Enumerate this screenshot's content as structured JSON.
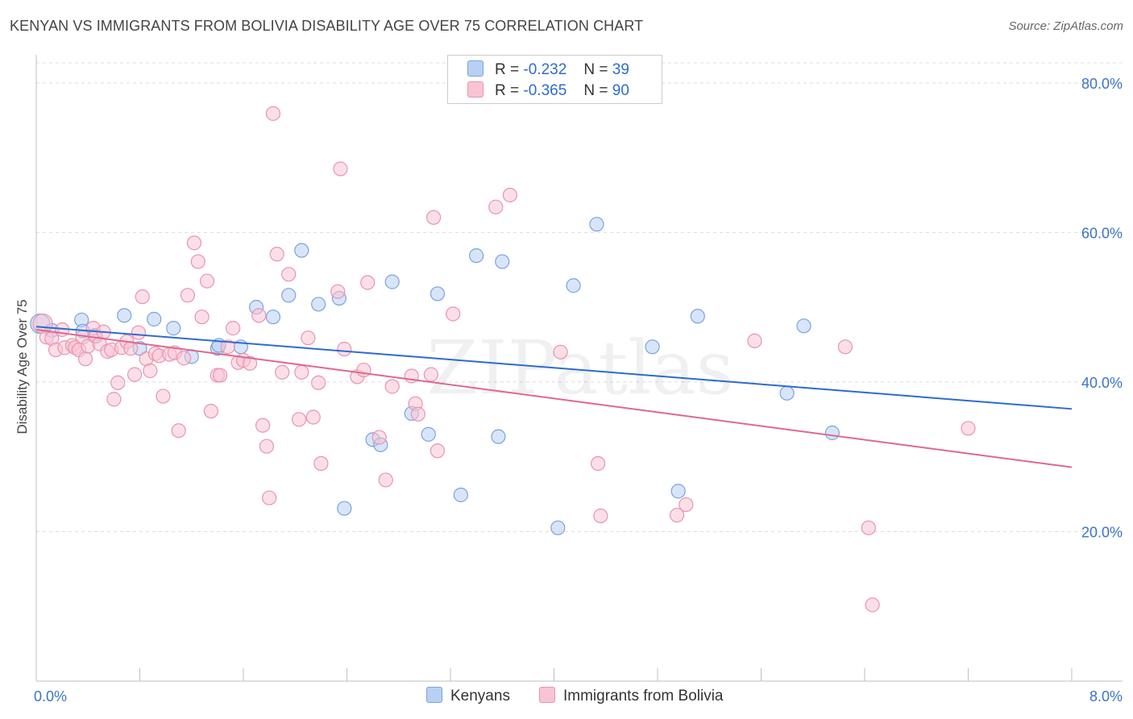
{
  "title": "KENYAN VS IMMIGRANTS FROM BOLIVIA DISABILITY AGE OVER 75 CORRELATION CHART",
  "source": "Source: ZipAtlas.com",
  "watermark": "ZIPatlas",
  "legend": {
    "kenyans": {
      "r_label": "R =",
      "r_value": "-0.232",
      "n_label": "N =",
      "n_value": "39"
    },
    "bolivia": {
      "r_label": "R =",
      "r_value": "-0.365",
      "n_label": "N =",
      "n_value": "90"
    }
  },
  "bottom_legend": {
    "kenyans": "Kenyans",
    "bolivia": "Immigrants from Bolivia"
  },
  "colors": {
    "kenyans_fill": "#b8d0f2",
    "kenyans_stroke": "#7aa3de",
    "kenyans_line": "#2d6bd0",
    "bolivia_fill": "#f8c4d4",
    "bolivia_stroke": "#ea93b0",
    "bolivia_line": "#e0678f",
    "axis_label": "#3a74c8"
  },
  "chart_data": {
    "type": "scatter",
    "title": "KENYAN VS IMMIGRANTS FROM BOLIVIA DISABILITY AGE OVER 75 CORRELATION CHART",
    "xlabel": "",
    "ylabel": "Disability Age Over 75",
    "xlim": [
      0,
      8
    ],
    "ylim": [
      0,
      83
    ],
    "x_tick_labels": [
      "0.0%",
      "8.0%"
    ],
    "y_ticks": [
      20,
      40,
      60,
      80
    ],
    "y_tick_labels": [
      "20.0%",
      "40.0%",
      "60.0%",
      "80.0%"
    ],
    "grid": true,
    "series": [
      {
        "name": "Kenyans",
        "r": -0.232,
        "n": 39,
        "trend": {
          "x": [
            0,
            8
          ],
          "y": [
            47.4,
            36.4
          ]
        },
        "points": [
          {
            "x": 0.03,
            "y": 47.8
          },
          {
            "x": 0.35,
            "y": 48.3
          },
          {
            "x": 0.68,
            "y": 48.9
          },
          {
            "x": 0.91,
            "y": 48.4
          },
          {
            "x": 0.36,
            "y": 46.8
          },
          {
            "x": 0.45,
            "y": 46.2
          },
          {
            "x": 0.8,
            "y": 44.5
          },
          {
            "x": 1.06,
            "y": 47.2
          },
          {
            "x": 1.2,
            "y": 43.4
          },
          {
            "x": 1.4,
            "y": 44.5
          },
          {
            "x": 1.41,
            "y": 44.9
          },
          {
            "x": 1.58,
            "y": 44.7
          },
          {
            "x": 1.7,
            "y": 50.0
          },
          {
            "x": 1.83,
            "y": 48.7
          },
          {
            "x": 1.95,
            "y": 51.6
          },
          {
            "x": 2.05,
            "y": 57.6
          },
          {
            "x": 2.18,
            "y": 50.4
          },
          {
            "x": 2.34,
            "y": 51.2
          },
          {
            "x": 2.6,
            "y": 32.3
          },
          {
            "x": 2.66,
            "y": 31.6
          },
          {
            "x": 2.75,
            "y": 53.4
          },
          {
            "x": 2.9,
            "y": 35.8
          },
          {
            "x": 3.03,
            "y": 33.0
          },
          {
            "x": 3.1,
            "y": 51.8
          },
          {
            "x": 3.28,
            "y": 24.9
          },
          {
            "x": 3.4,
            "y": 56.9
          },
          {
            "x": 3.57,
            "y": 32.7
          },
          {
            "x": 3.6,
            "y": 56.1
          },
          {
            "x": 4.03,
            "y": 20.5
          },
          {
            "x": 4.15,
            "y": 52.9
          },
          {
            "x": 4.33,
            "y": 61.1
          },
          {
            "x": 4.76,
            "y": 44.7
          },
          {
            "x": 4.96,
            "y": 25.4
          },
          {
            "x": 5.11,
            "y": 48.8
          },
          {
            "x": 5.8,
            "y": 38.5
          },
          {
            "x": 5.93,
            "y": 47.5
          },
          {
            "x": 6.15,
            "y": 33.2
          },
          {
            "x": 2.38,
            "y": 23.1
          },
          {
            "x": 0.12,
            "y": 46.9
          }
        ]
      },
      {
        "name": "Immigrants from Bolivia",
        "r": -0.365,
        "n": 90,
        "trend": {
          "x": [
            0,
            8
          ],
          "y": [
            47.0,
            28.6
          ]
        },
        "points": [
          {
            "x": 0.05,
            "y": 47.8
          },
          {
            "x": 0.08,
            "y": 46.0
          },
          {
            "x": 0.12,
            "y": 45.8
          },
          {
            "x": 0.15,
            "y": 44.3
          },
          {
            "x": 0.2,
            "y": 47.0
          },
          {
            "x": 0.22,
            "y": 44.6
          },
          {
            "x": 0.28,
            "y": 44.9
          },
          {
            "x": 0.3,
            "y": 44.6
          },
          {
            "x": 0.33,
            "y": 44.3
          },
          {
            "x": 0.36,
            "y": 46.0
          },
          {
            "x": 0.38,
            "y": 43.1
          },
          {
            "x": 0.4,
            "y": 44.8
          },
          {
            "x": 0.44,
            "y": 47.2
          },
          {
            "x": 0.46,
            "y": 46.1
          },
          {
            "x": 0.49,
            "y": 45.1
          },
          {
            "x": 0.52,
            "y": 46.7
          },
          {
            "x": 0.55,
            "y": 44.1
          },
          {
            "x": 0.58,
            "y": 44.3
          },
          {
            "x": 0.6,
            "y": 37.7
          },
          {
            "x": 0.63,
            "y": 39.9
          },
          {
            "x": 0.66,
            "y": 44.6
          },
          {
            "x": 0.7,
            "y": 45.4
          },
          {
            "x": 0.73,
            "y": 44.5
          },
          {
            "x": 0.76,
            "y": 41.0
          },
          {
            "x": 0.79,
            "y": 46.6
          },
          {
            "x": 0.82,
            "y": 51.4
          },
          {
            "x": 0.85,
            "y": 43.1
          },
          {
            "x": 0.88,
            "y": 41.5
          },
          {
            "x": 0.92,
            "y": 43.8
          },
          {
            "x": 0.95,
            "y": 43.5
          },
          {
            "x": 0.98,
            "y": 38.1
          },
          {
            "x": 1.03,
            "y": 43.7
          },
          {
            "x": 1.07,
            "y": 43.9
          },
          {
            "x": 1.1,
            "y": 33.5
          },
          {
            "x": 1.14,
            "y": 43.2
          },
          {
            "x": 1.17,
            "y": 51.6
          },
          {
            "x": 1.22,
            "y": 58.6
          },
          {
            "x": 1.25,
            "y": 56.1
          },
          {
            "x": 1.28,
            "y": 48.7
          },
          {
            "x": 1.32,
            "y": 53.5
          },
          {
            "x": 1.35,
            "y": 36.1
          },
          {
            "x": 1.4,
            "y": 40.9
          },
          {
            "x": 1.42,
            "y": 40.9
          },
          {
            "x": 1.48,
            "y": 44.7
          },
          {
            "x": 1.52,
            "y": 47.2
          },
          {
            "x": 1.56,
            "y": 42.6
          },
          {
            "x": 1.6,
            "y": 42.9
          },
          {
            "x": 1.65,
            "y": 42.5
          },
          {
            "x": 1.72,
            "y": 48.9
          },
          {
            "x": 1.75,
            "y": 34.2
          },
          {
            "x": 1.78,
            "y": 31.4
          },
          {
            "x": 1.8,
            "y": 24.5
          },
          {
            "x": 1.83,
            "y": 75.9
          },
          {
            "x": 1.86,
            "y": 57.1
          },
          {
            "x": 1.9,
            "y": 41.3
          },
          {
            "x": 1.95,
            "y": 54.4
          },
          {
            "x": 2.03,
            "y": 35.0
          },
          {
            "x": 2.05,
            "y": 41.3
          },
          {
            "x": 2.1,
            "y": 45.9
          },
          {
            "x": 2.14,
            "y": 35.3
          },
          {
            "x": 2.18,
            "y": 39.9
          },
          {
            "x": 2.2,
            "y": 29.1
          },
          {
            "x": 2.33,
            "y": 52.1
          },
          {
            "x": 2.35,
            "y": 68.5
          },
          {
            "x": 2.38,
            "y": 44.4
          },
          {
            "x": 2.48,
            "y": 40.7
          },
          {
            "x": 2.53,
            "y": 41.6
          },
          {
            "x": 2.56,
            "y": 53.3
          },
          {
            "x": 2.65,
            "y": 32.6
          },
          {
            "x": 2.7,
            "y": 26.9
          },
          {
            "x": 2.75,
            "y": 39.4
          },
          {
            "x": 2.9,
            "y": 40.8
          },
          {
            "x": 2.93,
            "y": 37.1
          },
          {
            "x": 2.95,
            "y": 35.7
          },
          {
            "x": 3.05,
            "y": 41.0
          },
          {
            "x": 3.07,
            "y": 62.0
          },
          {
            "x": 3.1,
            "y": 30.8
          },
          {
            "x": 3.22,
            "y": 49.1
          },
          {
            "x": 3.55,
            "y": 63.4
          },
          {
            "x": 3.66,
            "y": 65.0
          },
          {
            "x": 4.05,
            "y": 44.0
          },
          {
            "x": 4.34,
            "y": 29.1
          },
          {
            "x": 4.36,
            "y": 22.1
          },
          {
            "x": 4.95,
            "y": 22.2
          },
          {
            "x": 5.02,
            "y": 23.6
          },
          {
            "x": 5.55,
            "y": 45.5
          },
          {
            "x": 6.25,
            "y": 44.7
          },
          {
            "x": 6.43,
            "y": 20.5
          },
          {
            "x": 6.46,
            "y": 10.2
          },
          {
            "x": 7.2,
            "y": 33.8
          }
        ]
      }
    ]
  }
}
